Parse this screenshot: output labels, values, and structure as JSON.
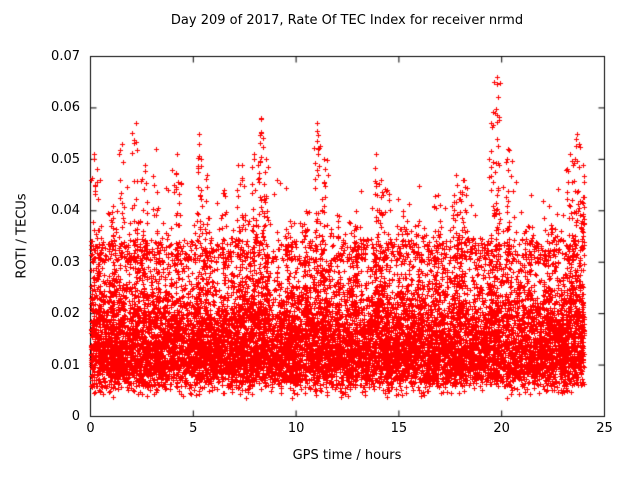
{
  "chart_data": {
    "type": "scatter",
    "title": "Day 209 of 2017, Rate Of TEC Index for receiver nrmd",
    "xlabel": "GPS time / hours",
    "ylabel": "ROTI / TECUs",
    "xlim": [
      0,
      25
    ],
    "ylim": [
      0,
      0.07
    ],
    "xticks": [
      0,
      5,
      10,
      15,
      20,
      25
    ],
    "yticks": [
      0,
      0.01,
      0.02,
      0.03,
      0.04,
      0.05,
      0.06,
      0.07
    ],
    "xtick_labels": [
      "0",
      "5",
      "10",
      "15",
      "20",
      "25"
    ],
    "ytick_labels": [
      "0",
      "0.01",
      "0.02",
      "0.03",
      "0.04",
      "0.05",
      "0.06",
      "0.07"
    ],
    "marker": "plus",
    "marker_color": "#ff0000",
    "axis_color": "#000000",
    "background_color": "#ffffff",
    "legend": "none",
    "grid": false,
    "description": "Dense scatter of ROTI values vs GPS time; core band roughly 0.005-0.03 TECUs across 0-24 h with intermittent vertical bursts reaching 0.04-0.066",
    "point_synthesis": {
      "seed": 209,
      "baseline": {
        "n": 11000,
        "x_range": [
          0,
          24
        ],
        "y_offset": 0.001,
        "log_mu": -4.34,
        "log_sigma": 0.48,
        "y_min": 0.0035,
        "y_max": 0.0345
      },
      "outliers": {
        "n": 500,
        "y_base": 0.03,
        "mean_excess": 0.004,
        "y_max": 0.046
      },
      "spike_shape": {
        "y_base": 0.018,
        "x_sigma": 0.1,
        "pow": 1.6
      },
      "spikes": [
        {
          "x": 0.15,
          "peak": 0.051,
          "n": 35
        },
        {
          "x": 0.45,
          "peak": 0.046,
          "n": 30
        },
        {
          "x": 1.1,
          "peak": 0.041,
          "n": 30
        },
        {
          "x": 1.55,
          "peak": 0.053,
          "n": 40
        },
        {
          "x": 2.2,
          "peak": 0.057,
          "n": 45
        },
        {
          "x": 2.65,
          "peak": 0.049,
          "n": 35
        },
        {
          "x": 3.2,
          "peak": 0.052,
          "n": 40
        },
        {
          "x": 4.2,
          "peak": 0.051,
          "n": 40
        },
        {
          "x": 5.3,
          "peak": 0.055,
          "n": 50
        },
        {
          "x": 5.65,
          "peak": 0.047,
          "n": 35
        },
        {
          "x": 6.5,
          "peak": 0.044,
          "n": 30
        },
        {
          "x": 7.35,
          "peak": 0.049,
          "n": 45
        },
        {
          "x": 7.95,
          "peak": 0.051,
          "n": 50
        },
        {
          "x": 8.3,
          "peak": 0.058,
          "n": 55
        },
        {
          "x": 8.55,
          "peak": 0.05,
          "n": 40
        },
        {
          "x": 9.7,
          "peak": 0.038,
          "n": 30
        },
        {
          "x": 10.5,
          "peak": 0.04,
          "n": 35
        },
        {
          "x": 11.0,
          "peak": 0.057,
          "n": 50
        },
        {
          "x": 11.35,
          "peak": 0.05,
          "n": 40
        },
        {
          "x": 12.1,
          "peak": 0.039,
          "n": 30
        },
        {
          "x": 12.85,
          "peak": 0.037,
          "n": 30
        },
        {
          "x": 13.9,
          "peak": 0.051,
          "n": 45
        },
        {
          "x": 14.15,
          "peak": 0.046,
          "n": 35
        },
        {
          "x": 15.2,
          "peak": 0.039,
          "n": 30
        },
        {
          "x": 16.0,
          "peak": 0.038,
          "n": 30
        },
        {
          "x": 16.9,
          "peak": 0.043,
          "n": 35
        },
        {
          "x": 17.8,
          "peak": 0.047,
          "n": 40
        },
        {
          "x": 18.15,
          "peak": 0.046,
          "n": 35
        },
        {
          "x": 19.5,
          "peak": 0.057,
          "n": 50
        },
        {
          "x": 19.75,
          "peak": 0.066,
          "n": 55
        },
        {
          "x": 20.3,
          "peak": 0.052,
          "n": 45
        },
        {
          "x": 21.3,
          "peak": 0.037,
          "n": 30
        },
        {
          "x": 22.3,
          "peak": 0.041,
          "n": 35
        },
        {
          "x": 23.3,
          "peak": 0.051,
          "n": 45
        },
        {
          "x": 23.65,
          "peak": 0.055,
          "n": 50
        },
        {
          "x": 23.95,
          "peak": 0.049,
          "n": 45
        }
      ]
    }
  }
}
